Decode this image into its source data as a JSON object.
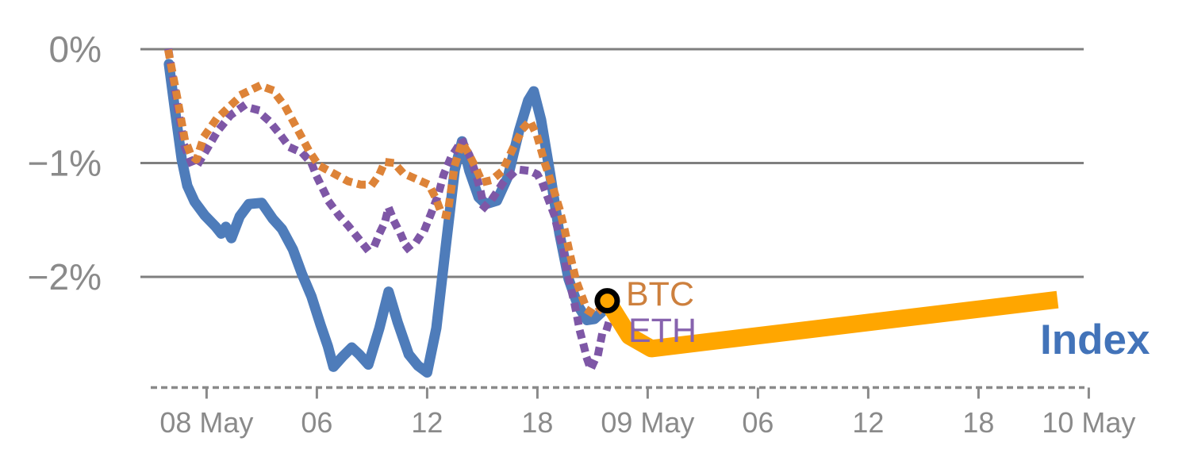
{
  "page": {
    "background": "#ffffff"
  },
  "chart_data": {
    "type": "line",
    "title": "",
    "xlabel": "",
    "ylabel": "",
    "grid": true,
    "legend_position": "inline-end-labels",
    "x_axis": {
      "style": "dashed-baseline",
      "hour_min": -3,
      "hour_max": 48.3,
      "ticks": [
        {
          "label": "08 May",
          "hour": 0
        },
        {
          "label": "06",
          "hour": 6
        },
        {
          "label": "12",
          "hour": 12
        },
        {
          "label": "18",
          "hour": 18
        },
        {
          "label": "09 May",
          "hour": 24
        },
        {
          "label": "06",
          "hour": 30
        },
        {
          "label": "12",
          "hour": 36
        },
        {
          "label": "18",
          "hour": 42
        },
        {
          "label": "10 May",
          "hour": 48
        }
      ]
    },
    "y_axis": {
      "unit": "%",
      "v_min": -2.96,
      "v_max": 0.1,
      "ticks": [
        {
          "label": "0%",
          "value": 0
        },
        {
          "label": "−1%",
          "value": -1
        },
        {
          "label": "−2%",
          "value": -2
        }
      ]
    },
    "colors": {
      "index_line": "#4e7cba",
      "index_label": "#4273b9",
      "btc_line": "#dd8338",
      "btc_label": "#cd803e",
      "eth_line": "#7e57a6",
      "eth_label": "#8763ae",
      "projection_line": "#ffa600",
      "marker_ring": "#000000",
      "gridline": "#7f7f7f",
      "axis_text": "#8a8a8a"
    },
    "series": [
      {
        "name": "Index",
        "color": "#4e7cba",
        "line_style": "solid",
        "stroke_width": 13,
        "points": [
          [
            -2.05,
            -0.13
          ],
          [
            -1.75,
            -0.5
          ],
          [
            -1.35,
            -0.97
          ],
          [
            -1.05,
            -1.2
          ],
          [
            -0.65,
            -1.34
          ],
          [
            -0.1,
            -1.46
          ],
          [
            0.5,
            -1.56
          ],
          [
            0.8,
            -1.62
          ],
          [
            1.05,
            -1.56
          ],
          [
            1.35,
            -1.66
          ],
          [
            1.8,
            -1.47
          ],
          [
            2.3,
            -1.36
          ],
          [
            3.0,
            -1.35
          ],
          [
            3.6,
            -1.49
          ],
          [
            4.1,
            -1.58
          ],
          [
            4.7,
            -1.76
          ],
          [
            5.2,
            -1.98
          ],
          [
            5.7,
            -2.17
          ],
          [
            6.2,
            -2.42
          ],
          [
            6.6,
            -2.61
          ],
          [
            6.9,
            -2.79
          ],
          [
            7.4,
            -2.7
          ],
          [
            7.9,
            -2.62
          ],
          [
            8.3,
            -2.68
          ],
          [
            8.8,
            -2.77
          ],
          [
            9.4,
            -2.45
          ],
          [
            9.9,
            -2.13
          ],
          [
            10.4,
            -2.4
          ],
          [
            11.0,
            -2.68
          ],
          [
            11.5,
            -2.78
          ],
          [
            12.0,
            -2.84
          ],
          [
            12.5,
            -2.45
          ],
          [
            13.0,
            -1.75
          ],
          [
            13.5,
            -1.06
          ],
          [
            13.9,
            -0.81
          ],
          [
            14.3,
            -1.07
          ],
          [
            14.8,
            -1.3
          ],
          [
            15.2,
            -1.36
          ],
          [
            15.8,
            -1.33
          ],
          [
            16.4,
            -1.12
          ],
          [
            17.0,
            -0.72
          ],
          [
            17.5,
            -0.45
          ],
          [
            17.8,
            -0.37
          ],
          [
            18.2,
            -0.62
          ],
          [
            18.7,
            -1.1
          ],
          [
            19.2,
            -1.62
          ],
          [
            19.7,
            -2.02
          ],
          [
            20.2,
            -2.25
          ],
          [
            20.7,
            -2.38
          ],
          [
            21.1,
            -2.37
          ],
          [
            21.5,
            -2.31
          ]
        ]
      },
      {
        "name": "ETH",
        "color": "#7e57a6",
        "line_style": "dotted",
        "stroke_width": 10,
        "points": [
          [
            -2.05,
            -0.03
          ],
          [
            -1.6,
            -0.48
          ],
          [
            -1.2,
            -0.85
          ],
          [
            -0.85,
            -0.99
          ],
          [
            -0.55,
            -1.03
          ],
          [
            -0.1,
            -0.91
          ],
          [
            0.6,
            -0.72
          ],
          [
            1.3,
            -0.58
          ],
          [
            2.0,
            -0.5
          ],
          [
            2.7,
            -0.53
          ],
          [
            3.4,
            -0.63
          ],
          [
            4.0,
            -0.75
          ],
          [
            4.5,
            -0.86
          ],
          [
            5.2,
            -0.91
          ],
          [
            5.7,
            -1.0
          ],
          [
            6.0,
            -1.12
          ],
          [
            6.7,
            -1.35
          ],
          [
            7.2,
            -1.46
          ],
          [
            7.7,
            -1.55
          ],
          [
            8.2,
            -1.65
          ],
          [
            8.7,
            -1.75
          ],
          [
            9.1,
            -1.74
          ],
          [
            9.4,
            -1.62
          ],
          [
            9.7,
            -1.52
          ],
          [
            9.9,
            -1.39
          ],
          [
            10.2,
            -1.51
          ],
          [
            10.6,
            -1.64
          ],
          [
            10.9,
            -1.75
          ],
          [
            11.5,
            -1.67
          ],
          [
            11.9,
            -1.57
          ],
          [
            12.2,
            -1.45
          ],
          [
            12.6,
            -1.28
          ],
          [
            12.9,
            -1.1
          ],
          [
            13.3,
            -0.95
          ],
          [
            13.9,
            -0.8
          ],
          [
            14.3,
            -0.93
          ],
          [
            14.6,
            -1.07
          ],
          [
            14.9,
            -1.24
          ],
          [
            15.1,
            -1.39
          ],
          [
            15.6,
            -1.3
          ],
          [
            16.1,
            -1.18
          ],
          [
            16.6,
            -1.1
          ],
          [
            17.1,
            -1.06
          ],
          [
            17.6,
            -1.07
          ],
          [
            18.0,
            -1.1
          ],
          [
            18.3,
            -1.19
          ],
          [
            18.6,
            -1.32
          ],
          [
            18.9,
            -1.45
          ],
          [
            19.1,
            -1.58
          ],
          [
            19.4,
            -1.75
          ],
          [
            19.6,
            -1.95
          ],
          [
            19.8,
            -2.08
          ],
          [
            20.0,
            -2.22
          ],
          [
            20.15,
            -2.34
          ],
          [
            20.3,
            -2.47
          ],
          [
            20.5,
            -2.59
          ],
          [
            20.7,
            -2.72
          ],
          [
            20.9,
            -2.81
          ],
          [
            21.1,
            -2.74
          ],
          [
            21.3,
            -2.68
          ],
          [
            21.5,
            -2.52
          ],
          [
            21.7,
            -2.5
          ],
          [
            21.9,
            -2.39
          ]
        ]
      },
      {
        "name": "BTC",
        "color": "#dd8338",
        "line_style": "dotted",
        "stroke_width": 10,
        "points": [
          [
            -2.05,
            -0.04
          ],
          [
            -1.6,
            -0.42
          ],
          [
            -1.2,
            -0.78
          ],
          [
            -0.85,
            -0.93
          ],
          [
            -0.55,
            -0.97
          ],
          [
            -0.15,
            -0.77
          ],
          [
            0.5,
            -0.62
          ],
          [
            1.2,
            -0.51
          ],
          [
            2.0,
            -0.39
          ],
          [
            2.9,
            -0.32
          ],
          [
            3.6,
            -0.36
          ],
          [
            4.3,
            -0.51
          ],
          [
            5.0,
            -0.72
          ],
          [
            5.6,
            -0.9
          ],
          [
            6.1,
            -1.02
          ],
          [
            6.9,
            -1.09
          ],
          [
            7.7,
            -1.16
          ],
          [
            8.4,
            -1.19
          ],
          [
            9.0,
            -1.19
          ],
          [
            9.4,
            -1.1
          ],
          [
            9.7,
            -0.99
          ],
          [
            10.2,
            -1.0
          ],
          [
            10.7,
            -1.09
          ],
          [
            11.4,
            -1.14
          ],
          [
            12.1,
            -1.19
          ],
          [
            12.5,
            -1.32
          ],
          [
            12.8,
            -1.45
          ],
          [
            13.1,
            -1.46
          ],
          [
            13.5,
            -1.02
          ],
          [
            13.9,
            -0.82
          ],
          [
            14.3,
            -0.93
          ],
          [
            14.7,
            -1.06
          ],
          [
            15.0,
            -1.17
          ],
          [
            15.5,
            -1.15
          ],
          [
            16.1,
            -1.07
          ],
          [
            16.7,
            -0.86
          ],
          [
            17.2,
            -0.7
          ],
          [
            17.6,
            -0.63
          ],
          [
            18.0,
            -0.77
          ],
          [
            18.4,
            -1.0
          ],
          [
            18.8,
            -1.19
          ],
          [
            19.2,
            -1.4
          ],
          [
            19.5,
            -1.6
          ],
          [
            19.8,
            -1.82
          ],
          [
            20.1,
            -2.03
          ],
          [
            20.4,
            -2.16
          ],
          [
            20.7,
            -2.29
          ],
          [
            21.1,
            -2.33
          ],
          [
            21.45,
            -2.28
          ],
          [
            21.8,
            -2.21
          ]
        ]
      },
      {
        "name": "Index projection",
        "color": "#ffa600",
        "line_style": "solid",
        "stroke_width": 22,
        "points": [
          [
            21.8,
            -2.21
          ],
          [
            23.0,
            -2.52
          ],
          [
            24.2,
            -2.63
          ],
          [
            46.3,
            -2.2
          ]
        ]
      }
    ],
    "end_marker": {
      "series": "BTC",
      "hour": 21.8,
      "value": -2.21,
      "shape": "circle",
      "ring_color": "#000000",
      "fill": "#ffa600"
    },
    "series_labels": [
      {
        "text": "BTC",
        "color": "#cd803e"
      },
      {
        "text": "ETH",
        "color": "#8763ae"
      },
      {
        "text": "Index",
        "color": "#4273b9"
      }
    ]
  }
}
